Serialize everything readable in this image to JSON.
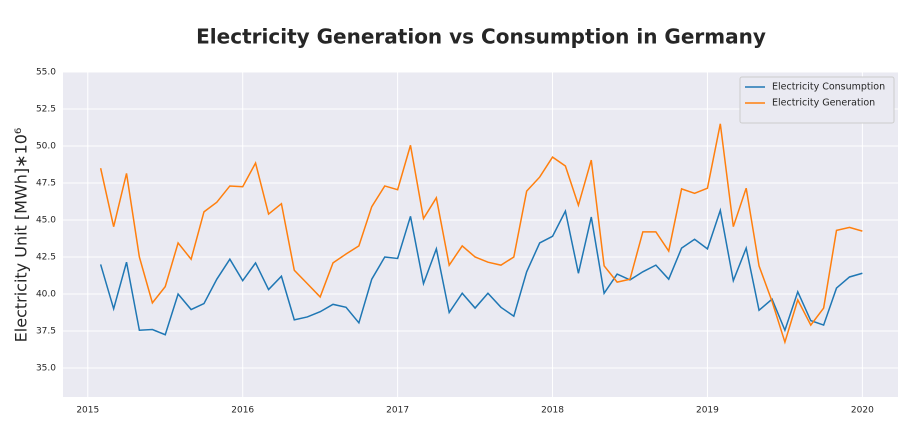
{
  "chart_data": {
    "type": "line",
    "title": "Electricity Generation vs Consumption in Germany",
    "ylabel": "Electricity Unit [MWh]∗10⁶",
    "x": [
      2015.083,
      2015.167,
      2015.25,
      2015.333,
      2015.417,
      2015.5,
      2015.583,
      2015.667,
      2015.75,
      2015.833,
      2015.917,
      2016,
      2016.083,
      2016.167,
      2016.25,
      2016.333,
      2016.417,
      2016.5,
      2016.583,
      2016.667,
      2016.75,
      2016.833,
      2016.917,
      2017,
      2017.083,
      2017.167,
      2017.25,
      2017.333,
      2017.417,
      2017.5,
      2017.583,
      2017.667,
      2017.75,
      2017.833,
      2017.917,
      2018,
      2018.083,
      2018.167,
      2018.25,
      2018.333,
      2018.417,
      2018.5,
      2018.583,
      2018.667,
      2018.75,
      2018.833,
      2018.917,
      2019,
      2019.083,
      2019.167,
      2019.25,
      2019.333,
      2019.417,
      2019.5,
      2019.583,
      2019.667,
      2019.75,
      2019.833,
      2019.917,
      2020
    ],
    "series": [
      {
        "name": "Electricity Consumption",
        "color": "#1f77b4",
        "values": [
          42.0,
          39.0,
          42.15,
          37.55,
          37.6,
          37.25,
          40.0,
          38.95,
          39.35,
          41.0,
          42.35,
          40.9,
          42.1,
          40.3,
          41.2,
          38.25,
          38.45,
          38.8,
          39.3,
          39.1,
          38.05,
          41.0,
          42.5,
          42.4,
          45.25,
          40.7,
          43.05,
          38.75,
          40.05,
          39.05,
          40.05,
          39.1,
          38.5,
          41.5,
          43.45,
          43.9,
          45.6,
          41.4,
          45.2,
          40.05,
          41.35,
          40.95,
          41.5,
          41.95,
          41.0,
          43.1,
          43.7,
          43.05,
          45.65,
          40.9,
          43.1,
          38.9,
          39.65,
          37.55,
          40.15,
          38.2,
          37.9,
          40.4,
          41.15,
          41.4
        ]
      },
      {
        "name": "Electricity Generation",
        "color": "#ff7f0e",
        "values": [
          48.5,
          44.55,
          48.15,
          42.5,
          39.4,
          40.5,
          43.45,
          42.35,
          45.55,
          46.2,
          47.3,
          47.25,
          48.85,
          45.4,
          46.1,
          41.6,
          40.7,
          39.8,
          42.1,
          42.7,
          43.25,
          45.9,
          47.3,
          47.05,
          50.05,
          45.1,
          46.5,
          41.95,
          43.25,
          42.5,
          42.15,
          41.95,
          42.5,
          46.95,
          47.9,
          49.25,
          48.65,
          46.0,
          49.05,
          41.9,
          40.8,
          41.0,
          44.2,
          44.2,
          42.9,
          47.1,
          46.8,
          47.15,
          51.5,
          44.55,
          47.15,
          41.9,
          39.5,
          36.75,
          39.6,
          37.9,
          39.05,
          44.3,
          44.5,
          44.25
        ]
      }
    ],
    "xlim": [
      2014.84,
      2020.23
    ],
    "xticks": [
      2015,
      2016,
      2017,
      2018,
      2019,
      2020
    ],
    "ylim": [
      33.04,
      55
    ],
    "yticks": [
      {
        "value": 35,
        "label": "35.0"
      },
      37.5,
      {
        "value": 40,
        "label": "40.0"
      },
      42.5,
      {
        "value": 45,
        "label": "45.0"
      },
      47.5,
      {
        "value": 50,
        "label": "50.0"
      },
      52.5,
      {
        "value": 55,
        "label": "55.0"
      }
    ],
    "grid": true,
    "legend": "upper right"
  }
}
